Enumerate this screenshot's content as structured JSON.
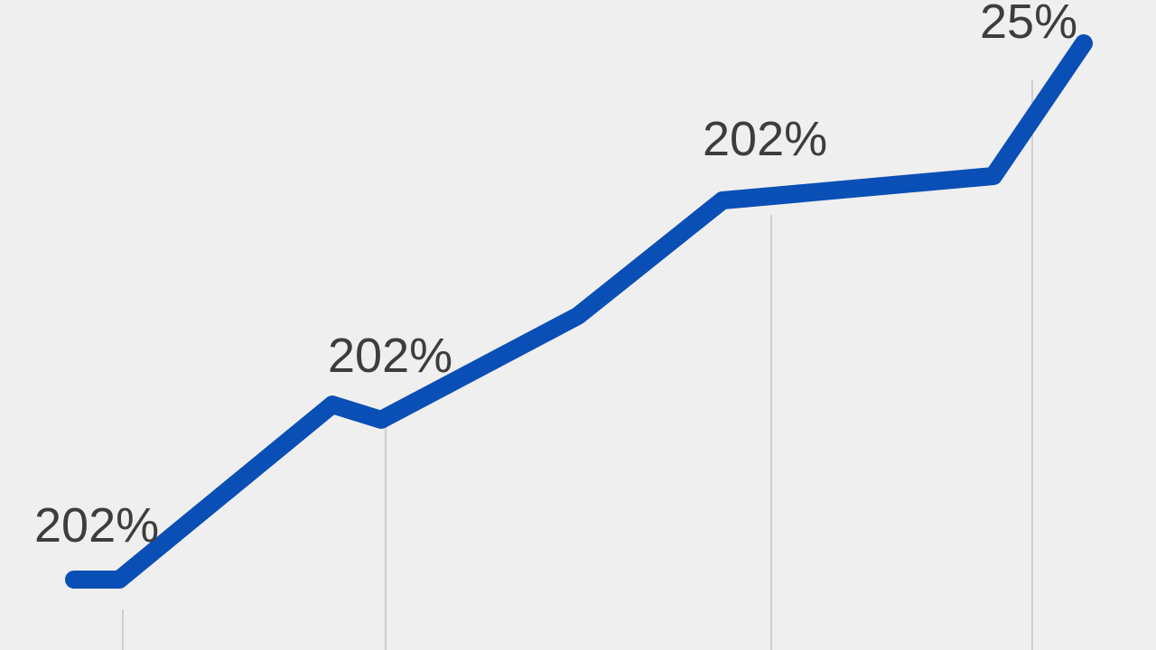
{
  "chart_data": {
    "type": "line",
    "x": [
      0,
      5,
      28.6,
      34,
      55.8,
      71.8,
      101.8,
      111.8
    ],
    "series": [
      {
        "color": "#0a4fb5",
        "values": [
          3,
          3,
          35.3,
          32.5,
          51.7,
          73,
          77.5,
          102
        ]
      }
    ],
    "annotations": [
      "202%",
      "202%",
      "202%",
      "25%"
    ]
  }
}
